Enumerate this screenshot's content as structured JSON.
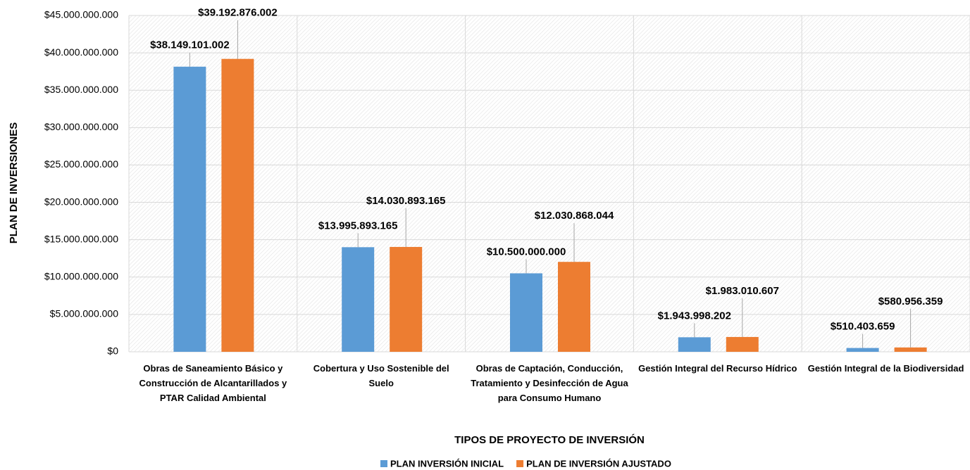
{
  "chart_data": {
    "type": "bar",
    "x_label": "TIPOS DE PROYECTO DE INVERSIÓN",
    "y_label": "PLAN DE INVERSIONES",
    "categories": [
      "Obras de Saneamiento Básico y Construcción de Alcantarillados y PTAR Calidad Ambiental",
      "Cobertura y Uso Sostenible del Suelo",
      "Obras de Captación, Conducción, Tratamiento y Desinfección de Agua para Consumo Humano",
      "Gestión Integral del Recurso Hídrico",
      "Gestión Integral de la Biodiversidad"
    ],
    "series": [
      {
        "name": "PLAN INVERSIÓN INICIAL",
        "color": "#5b9bd5",
        "values": [
          38149101002,
          13995893165,
          10500000000,
          1943998202,
          510403659
        ],
        "value_labels": [
          "$38.149.101.002",
          "$13.995.893.165",
          "$10.500.000.000",
          "$1.943.998.202",
          "$510.403.659"
        ]
      },
      {
        "name": "PLAN DE INVERSIÓN AJUSTADO",
        "color": "#ed7d31",
        "values": [
          39192876002,
          14030893165,
          12030868044,
          1983010607,
          580956359
        ],
        "value_labels": [
          "$39.192.876.002",
          "$14.030.893.165",
          "$12.030.868.044",
          "$1.983.010.607",
          "$580.956.359"
        ]
      }
    ],
    "ylim": [
      0,
      45000000000
    ],
    "yticks": [
      {
        "value": 0,
        "label": "$0"
      },
      {
        "value": 5000000000,
        "label": "$5.000.000.000"
      },
      {
        "value": 10000000000,
        "label": "$10.000.000.000"
      },
      {
        "value": 15000000000,
        "label": "$15.000.000.000"
      },
      {
        "value": 20000000000,
        "label": "$20.000.000.000"
      },
      {
        "value": 25000000000,
        "label": "$25.000.000.000"
      },
      {
        "value": 30000000000,
        "label": "$30.000.000.000"
      },
      {
        "value": 35000000000,
        "label": "$35.000.000.000"
      },
      {
        "value": 40000000000,
        "label": "$40.000.000.000"
      },
      {
        "value": 45000000000,
        "label": "$45.000.000.000"
      }
    ],
    "grid": true,
    "legend": "bottom"
  }
}
